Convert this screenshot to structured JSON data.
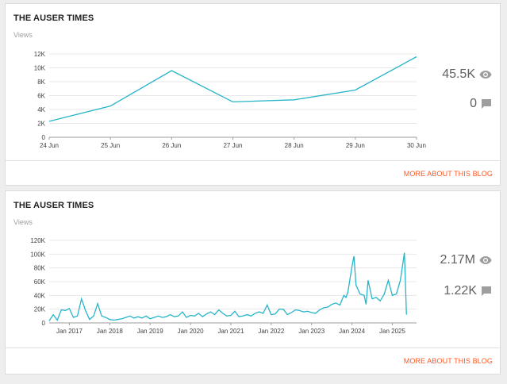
{
  "accent_color": "#ff5722",
  "line_color": "#26b5c8",
  "cards": [
    {
      "title": "THE AUSER TIMES",
      "metric_label": "Views",
      "views_total": "45.5K",
      "comments_total": "0",
      "more_link": "MORE ABOUT THIS BLOG",
      "views_icon": "eye-icon",
      "comments_icon": "comment-icon"
    },
    {
      "title": "THE AUSER TIMES",
      "metric_label": "Views",
      "views_total": "2.17M",
      "comments_total": "1.22K",
      "more_link": "MORE ABOUT THIS BLOG",
      "views_icon": "eye-icon",
      "comments_icon": "comment-icon"
    }
  ],
  "chart_data": [
    {
      "type": "line",
      "title": "",
      "xlabel": "",
      "ylabel": "Views",
      "x": [
        "24 Jun",
        "25 Jun",
        "26 Jun",
        "27 Jun",
        "28 Jun",
        "29 Jun",
        "30 Jun"
      ],
      "y_ticks": [
        "0",
        "2K",
        "4K",
        "6K",
        "8K",
        "10K",
        "12K"
      ],
      "ylim": [
        0,
        12000
      ],
      "grid": true,
      "series": [
        {
          "values": [
            2300,
            4500,
            9600,
            5100,
            5400,
            6800,
            11600
          ]
        }
      ]
    },
    {
      "type": "line",
      "title": "",
      "xlabel": "",
      "ylabel": "Views",
      "x_ticks": [
        "Jan 2017",
        "Jan 2018",
        "Jan 2019",
        "Jan 2020",
        "Jan 2021",
        "Jan 2022",
        "Jan 2023",
        "Jan 2024",
        "Jan 2025"
      ],
      "x_range": [
        2016.5,
        2025.6
      ],
      "y_ticks": [
        "0",
        "20K",
        "40K",
        "60K",
        "80K",
        "100K",
        "120K"
      ],
      "ylim": [
        0,
        120000
      ],
      "grid": true,
      "series": [
        {
          "points": [
            [
              2016.5,
              3000
            ],
            [
              2016.6,
              12000
            ],
            [
              2016.7,
              4000
            ],
            [
              2016.8,
              19000
            ],
            [
              2016.9,
              18000
            ],
            [
              2017.0,
              21000
            ],
            [
              2017.1,
              8000
            ],
            [
              2017.2,
              10000
            ],
            [
              2017.3,
              35000
            ],
            [
              2017.4,
              18000
            ],
            [
              2017.5,
              5000
            ],
            [
              2017.6,
              10000
            ],
            [
              2017.7,
              28000
            ],
            [
              2017.8,
              10000
            ],
            [
              2017.9,
              8000
            ],
            [
              2018.0,
              5000
            ],
            [
              2018.1,
              4000
            ],
            [
              2018.2,
              5000
            ],
            [
              2018.3,
              6000
            ],
            [
              2018.4,
              8000
            ],
            [
              2018.5,
              10000
            ],
            [
              2018.6,
              7000
            ],
            [
              2018.7,
              9000
            ],
            [
              2018.8,
              7000
            ],
            [
              2018.9,
              10000
            ],
            [
              2019.0,
              6000
            ],
            [
              2019.1,
              8000
            ],
            [
              2019.2,
              10000
            ],
            [
              2019.3,
              8000
            ],
            [
              2019.4,
              9000
            ],
            [
              2019.5,
              12000
            ],
            [
              2019.6,
              9000
            ],
            [
              2019.7,
              10000
            ],
            [
              2019.8,
              16000
            ],
            [
              2019.9,
              8000
            ],
            [
              2020.0,
              11000
            ],
            [
              2020.1,
              10000
            ],
            [
              2020.2,
              14000
            ],
            [
              2020.3,
              9000
            ],
            [
              2020.4,
              13000
            ],
            [
              2020.5,
              16000
            ],
            [
              2020.6,
              12000
            ],
            [
              2020.7,
              19000
            ],
            [
              2020.8,
              14000
            ],
            [
              2020.9,
              10000
            ],
            [
              2021.0,
              11000
            ],
            [
              2021.1,
              17000
            ],
            [
              2021.2,
              9000
            ],
            [
              2021.3,
              10000
            ],
            [
              2021.4,
              12000
            ],
            [
              2021.5,
              10000
            ],
            [
              2021.6,
              14000
            ],
            [
              2021.7,
              16000
            ],
            [
              2021.8,
              14000
            ],
            [
              2021.9,
              26000
            ],
            [
              2022.0,
              12000
            ],
            [
              2022.1,
              13000
            ],
            [
              2022.2,
              20000
            ],
            [
              2022.3,
              20000
            ],
            [
              2022.4,
              12000
            ],
            [
              2022.5,
              15000
            ],
            [
              2022.6,
              19000
            ],
            [
              2022.7,
              18000
            ],
            [
              2022.8,
              16000
            ],
            [
              2022.9,
              17000
            ],
            [
              2023.0,
              15000
            ],
            [
              2023.1,
              14000
            ],
            [
              2023.2,
              19000
            ],
            [
              2023.3,
              22000
            ],
            [
              2023.4,
              23000
            ],
            [
              2023.5,
              27000
            ],
            [
              2023.6,
              29000
            ],
            [
              2023.7,
              26000
            ],
            [
              2023.8,
              40000
            ],
            [
              2023.85,
              37000
            ],
            [
              2023.9,
              45000
            ],
            [
              2024.0,
              82000
            ],
            [
              2024.05,
              97000
            ],
            [
              2024.1,
              55000
            ],
            [
              2024.2,
              42000
            ],
            [
              2024.3,
              40000
            ],
            [
              2024.35,
              27000
            ],
            [
              2024.4,
              62000
            ],
            [
              2024.5,
              35000
            ],
            [
              2024.6,
              37000
            ],
            [
              2024.7,
              32000
            ],
            [
              2024.8,
              42000
            ],
            [
              2024.9,
              62000
            ],
            [
              2025.0,
              40000
            ],
            [
              2025.1,
              42000
            ],
            [
              2025.2,
              62000
            ],
            [
              2025.3,
              102000
            ],
            [
              2025.35,
              12000
            ]
          ]
        }
      ]
    }
  ]
}
